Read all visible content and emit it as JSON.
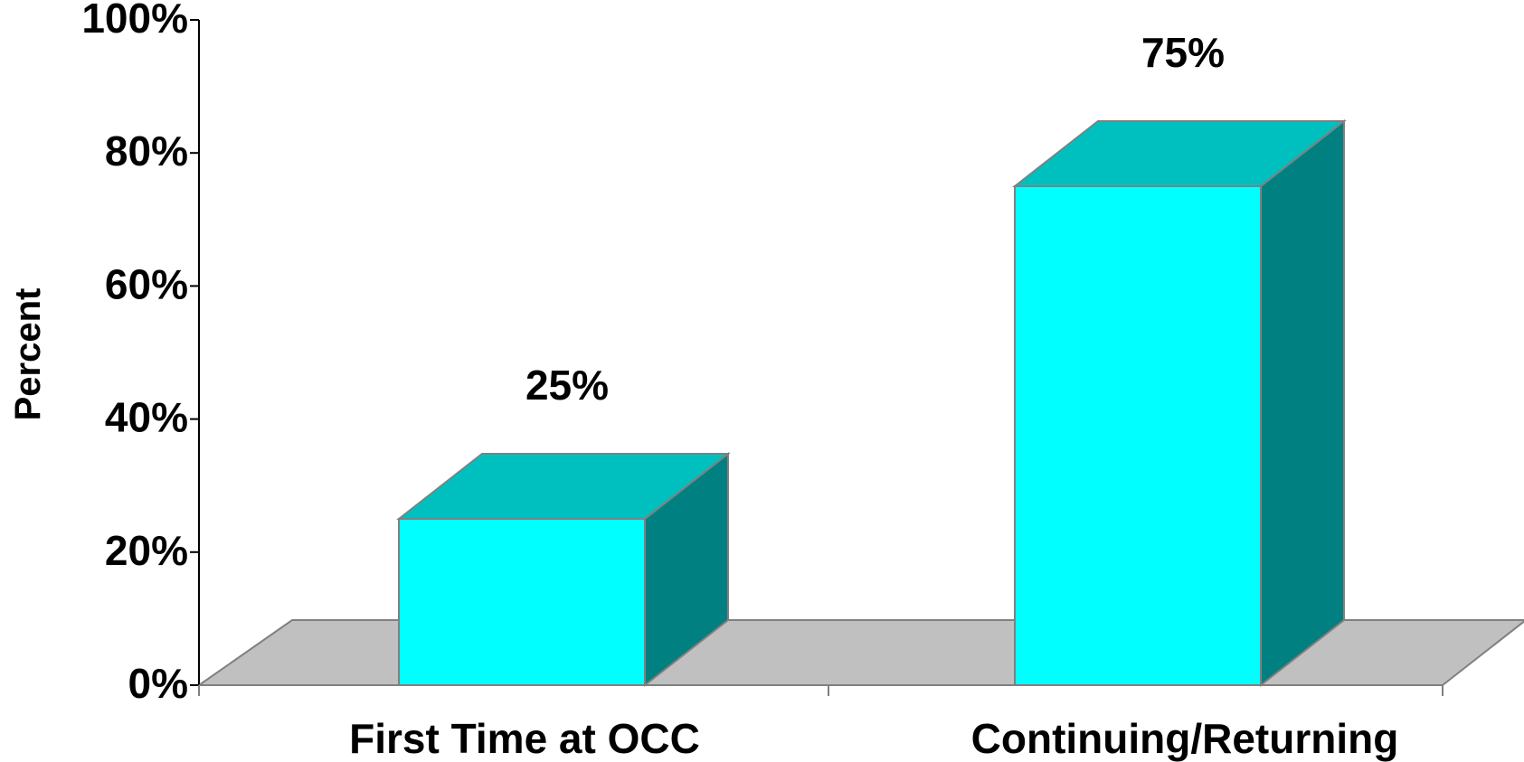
{
  "chart_data": {
    "type": "bar",
    "style": "3d",
    "categories": [
      "First Time at OCC",
      "Continuing/Returning"
    ],
    "values": [
      25,
      75
    ],
    "value_labels": [
      "25%",
      "75%"
    ],
    "title": "",
    "xlabel": "",
    "ylabel": "Percent",
    "ylim": [
      0,
      100
    ],
    "yticks": [
      "0%",
      "20%",
      "40%",
      "60%",
      "80%",
      "100%"
    ],
    "grid": false,
    "legend": "none",
    "colors": {
      "bar_front": "#00ffff",
      "bar_top": "#00bfbf",
      "bar_side": "#008080",
      "floor": "#c0c0c0",
      "edge": "#808080"
    }
  }
}
